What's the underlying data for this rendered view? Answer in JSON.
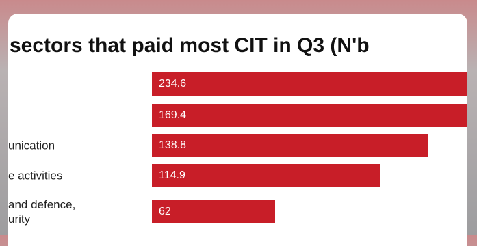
{
  "chart_data": {
    "type": "bar",
    "orientation": "horizontal",
    "title": "sectors that paid most CIT in Q3 (N'b",
    "categories": [
      null,
      null,
      "unication",
      "e activities",
      "and defence,\nurity"
    ],
    "values": [
      234.6,
      169.4,
      138.8,
      114.9,
      62
    ],
    "color": "#c81e28"
  }
}
